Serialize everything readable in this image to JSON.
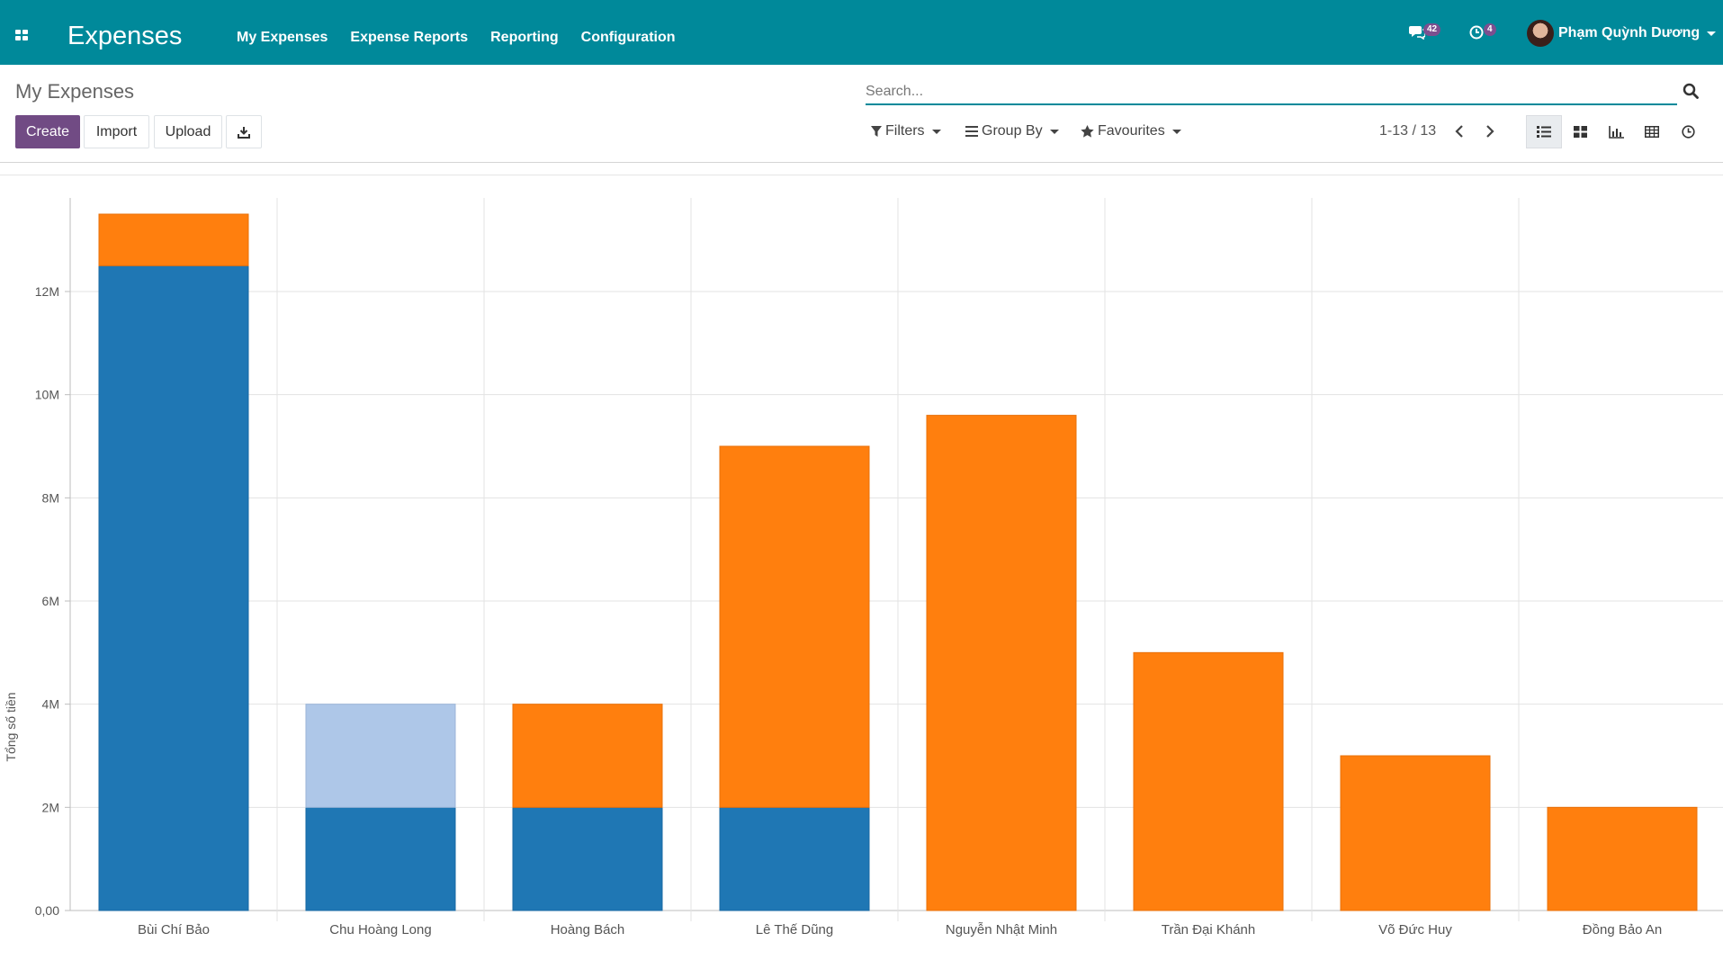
{
  "navbar": {
    "app_title": "Expenses",
    "menu": [
      "My Expenses",
      "Expense Reports",
      "Reporting",
      "Configuration"
    ],
    "messages_count": "42",
    "activities_count": "4",
    "user_name": "Phạm Quỳnh Dương",
    "bg_color": "#00899a"
  },
  "control_panel": {
    "title": "My Expenses",
    "search_placeholder": "Search...",
    "buttons": {
      "create": "Create",
      "import": "Import",
      "upload": "Upload"
    },
    "filters_label": "Filters",
    "group_by_label": "Group By",
    "favourites_label": "Favourites",
    "pager": "1-13 / 13",
    "views": [
      "list-icon",
      "kanban-icon",
      "graph-icon",
      "pivot-icon",
      "activity-icon"
    ],
    "active_view": "list-icon"
  },
  "chart_data": {
    "type": "bar",
    "stacked": true,
    "title": "",
    "xlabel": "",
    "ylabel": "Tổng số tiền",
    "ylim": [
      0,
      13800000
    ],
    "yticks": [
      0,
      2000000,
      4000000,
      6000000,
      8000000,
      10000000,
      12000000
    ],
    "ytick_labels": [
      "0,00",
      "2M",
      "4M",
      "6M",
      "8M",
      "10M",
      "12M"
    ],
    "grid": true,
    "categories": [
      "Bùi Chí Bảo",
      "Chu Hoàng Long",
      "Hoàng Bách",
      "Lê Thế Dũng",
      "Nguyễn Nhật Minh",
      "Trần Đại Khánh",
      "Võ Đức Huy",
      "Đồng Bảo An"
    ],
    "series": [
      {
        "color": "#1f77b4",
        "values": [
          12500000,
          2000000,
          2000000,
          2000000,
          0,
          0,
          0,
          0
        ]
      },
      {
        "color": "#aec7e8",
        "values": [
          0,
          2000000,
          0,
          0,
          0,
          0,
          0,
          0
        ]
      },
      {
        "color": "#ff7f0e",
        "values": [
          1000000,
          0,
          2000000,
          7000000,
          9600000,
          5000000,
          3000000,
          2000000
        ]
      }
    ]
  }
}
